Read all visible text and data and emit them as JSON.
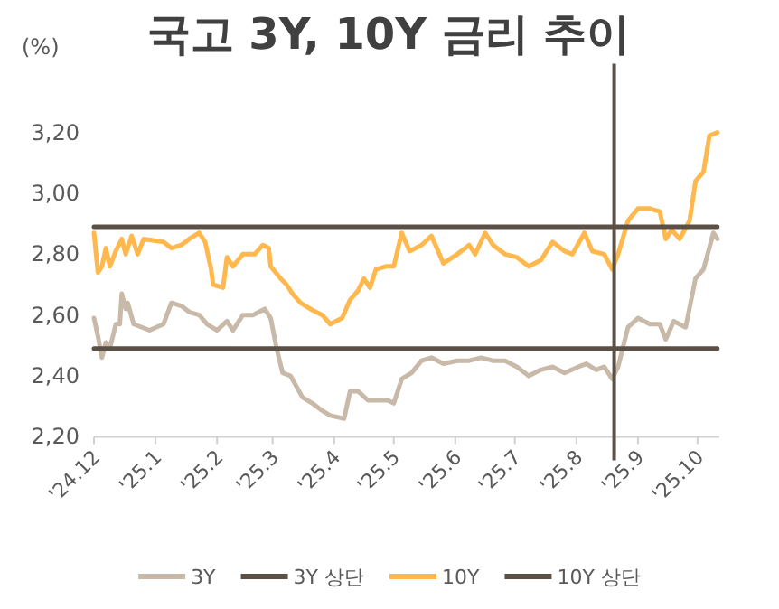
{
  "chart_data": {
    "type": "line",
    "title": "국고 3Y, 10Y 금리 추이",
    "ylabel": "(%)",
    "xlim": [
      "2024-12-01",
      "2025-10-12"
    ],
    "xticks": [
      {
        "value": "2024-12-01",
        "label": "'24.12"
      },
      {
        "value": "2025-01-01",
        "label": "'25.1"
      },
      {
        "value": "2025-02-01",
        "label": "'25.2"
      },
      {
        "value": "2025-03-01",
        "label": "'25.3"
      },
      {
        "value": "2025-04-01",
        "label": "'25.4"
      },
      {
        "value": "2025-05-01",
        "label": "'25.5"
      },
      {
        "value": "2025-06-01",
        "label": "'25.6"
      },
      {
        "value": "2025-07-01",
        "label": "'25.7"
      },
      {
        "value": "2025-08-01",
        "label": "'25.8"
      },
      {
        "value": "2025-09-01",
        "label": "'25.9"
      },
      {
        "value": "2025-10-01",
        "label": "'25.10"
      }
    ],
    "ylim": [
      2.2,
      3.2
    ],
    "yticks": [
      {
        "value": 2.2,
        "label": "2,20"
      },
      {
        "value": 2.4,
        "label": "2,40"
      },
      {
        "value": 2.6,
        "label": "2,60"
      },
      {
        "value": 2.8,
        "label": "2,80"
      },
      {
        "value": 3.0,
        "label": "3,00"
      },
      {
        "value": 3.2,
        "label": "3,20"
      }
    ],
    "grid": false,
    "legend": "bottom",
    "marker": "none",
    "line_style": "solid",
    "ref_lines": [
      {
        "axis": "x",
        "value": "2025-08-20",
        "label": null,
        "color": "#5b5046"
      }
    ],
    "series": [
      {
        "name": "3Y",
        "color": "#c8b9a8",
        "x": [
          "2024-12-01",
          "2024-12-03",
          "2024-12-05",
          "2024-12-07",
          "2024-12-09",
          "2024-12-12",
          "2024-12-14",
          "2024-12-15",
          "2024-12-17",
          "2024-12-18",
          "2024-12-21",
          "2024-12-29",
          "2025-01-05",
          "2025-01-09",
          "2025-01-14",
          "2025-01-18",
          "2025-01-23",
          "2025-01-27",
          "2025-02-01",
          "2025-02-06",
          "2025-02-09",
          "2025-02-14",
          "2025-02-19",
          "2025-02-25",
          "2025-02-28",
          "2025-03-03",
          "2025-03-06",
          "2025-03-10",
          "2025-03-16",
          "2025-03-21",
          "2025-03-25",
          "2025-03-30",
          "2025-04-06",
          "2025-04-09",
          "2025-04-13",
          "2025-04-18",
          "2025-04-22",
          "2025-04-28",
          "2025-05-01",
          "2025-05-05",
          "2025-05-10",
          "2025-05-15",
          "2025-05-20",
          "2025-05-26",
          "2025-06-02",
          "2025-06-08",
          "2025-06-14",
          "2025-06-20",
          "2025-06-26",
          "2025-07-02",
          "2025-07-08",
          "2025-07-14",
          "2025-07-20",
          "2025-07-26",
          "2025-08-02",
          "2025-08-06",
          "2025-08-11",
          "2025-08-15",
          "2025-08-19",
          "2025-08-22",
          "2025-08-27",
          "2025-09-01",
          "2025-09-07",
          "2025-09-12",
          "2025-09-15",
          "2025-09-19",
          "2025-09-25",
          "2025-09-30",
          "2025-10-04",
          "2025-10-09",
          "2025-10-11"
        ],
        "values": [
          2.59,
          2.53,
          2.46,
          2.51,
          2.49,
          2.57,
          2.57,
          2.67,
          2.62,
          2.64,
          2.57,
          2.55,
          2.57,
          2.64,
          2.63,
          2.61,
          2.6,
          2.57,
          2.55,
          2.58,
          2.55,
          2.6,
          2.6,
          2.62,
          2.59,
          2.49,
          2.41,
          2.4,
          2.33,
          2.31,
          2.29,
          2.27,
          2.26,
          2.35,
          2.35,
          2.32,
          2.32,
          2.32,
          2.31,
          2.39,
          2.41,
          2.45,
          2.46,
          2.44,
          2.45,
          2.45,
          2.46,
          2.45,
          2.45,
          2.43,
          2.4,
          2.42,
          2.43,
          2.41,
          2.43,
          2.44,
          2.42,
          2.43,
          2.39,
          2.43,
          2.56,
          2.59,
          2.57,
          2.57,
          2.52,
          2.58,
          2.56,
          2.72,
          2.75,
          2.87,
          2.85
        ]
      },
      {
        "name": "3Y 상단",
        "color": "#5b5046",
        "x": [
          "2024-12-01",
          "2025-10-11"
        ],
        "values": [
          2.49,
          2.49
        ]
      },
      {
        "name": "10Y",
        "color": "#ffb84d",
        "x": [
          "2024-12-01",
          "2024-12-03",
          "2024-12-05",
          "2024-12-07",
          "2024-12-09",
          "2024-12-12",
          "2024-12-15",
          "2024-12-17",
          "2024-12-20",
          "2024-12-23",
          "2024-12-26",
          "2025-01-05",
          "2025-01-09",
          "2025-01-14",
          "2025-01-18",
          "2025-01-23",
          "2025-01-26",
          "2025-01-29",
          "2025-01-30",
          "2025-02-04",
          "2025-02-06",
          "2025-02-09",
          "2025-02-14",
          "2025-02-20",
          "2025-02-24",
          "2025-02-27",
          "2025-02-28",
          "2025-03-05",
          "2025-03-08",
          "2025-03-11",
          "2025-03-15",
          "2025-03-20",
          "2025-03-26",
          "2025-03-30",
          "2025-04-05",
          "2025-04-09",
          "2025-04-13",
          "2025-04-16",
          "2025-04-19",
          "2025-04-22",
          "2025-04-27",
          "2025-04-30",
          "2025-05-01",
          "2025-05-05",
          "2025-05-09",
          "2025-05-15",
          "2025-05-20",
          "2025-05-26",
          "2025-06-02",
          "2025-06-08",
          "2025-06-11",
          "2025-06-16",
          "2025-06-20",
          "2025-06-26",
          "2025-07-02",
          "2025-07-08",
          "2025-07-14",
          "2025-07-20",
          "2025-07-26",
          "2025-07-30",
          "2025-08-05",
          "2025-08-09",
          "2025-08-15",
          "2025-08-19",
          "2025-08-22",
          "2025-08-27",
          "2025-09-01",
          "2025-09-07",
          "2025-09-12",
          "2025-09-15",
          "2025-09-18",
          "2025-09-22",
          "2025-09-27",
          "2025-09-30",
          "2025-10-04",
          "2025-10-07",
          "2025-10-11"
        ],
        "values": [
          2.87,
          2.74,
          2.76,
          2.82,
          2.76,
          2.81,
          2.85,
          2.8,
          2.86,
          2.8,
          2.85,
          2.84,
          2.82,
          2.83,
          2.85,
          2.87,
          2.84,
          2.75,
          2.7,
          2.69,
          2.79,
          2.76,
          2.8,
          2.8,
          2.83,
          2.82,
          2.76,
          2.72,
          2.7,
          2.67,
          2.64,
          2.62,
          2.6,
          2.57,
          2.59,
          2.65,
          2.68,
          2.72,
          2.69,
          2.75,
          2.76,
          2.76,
          2.76,
          2.87,
          2.81,
          2.83,
          2.86,
          2.77,
          2.8,
          2.83,
          2.8,
          2.87,
          2.83,
          2.8,
          2.79,
          2.76,
          2.78,
          2.84,
          2.81,
          2.8,
          2.87,
          2.81,
          2.8,
          2.75,
          2.8,
          2.91,
          2.95,
          2.95,
          2.94,
          2.85,
          2.88,
          2.85,
          2.91,
          3.04,
          3.07,
          3.19,
          3.2
        ]
      },
      {
        "name": "10Y 상단",
        "color": "#5b5046",
        "x": [
          "2024-12-01",
          "2025-10-11"
        ],
        "values": [
          2.89,
          2.89
        ]
      }
    ]
  }
}
